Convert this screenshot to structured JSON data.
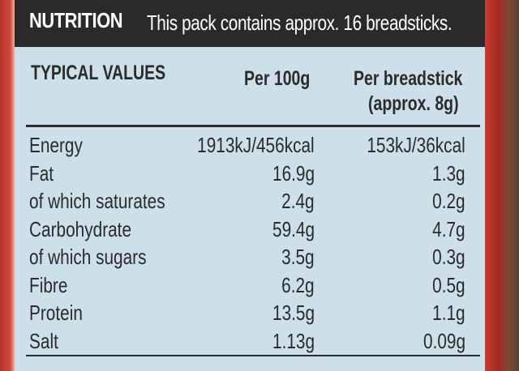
{
  "header": {
    "title": "NUTRITION",
    "subtitle": "This pack contains approx. 16 breadsticks."
  },
  "columns": {
    "nutrient": "TYPICAL VALUES",
    "per100": "Per 100g",
    "perstick_line1": "Per breadstick",
    "perstick_line2": "(approx. 8g)"
  },
  "rows": [
    {
      "nutrient": "Energy",
      "per100": "1913kJ/456kcal",
      "perstick": "153kJ/36kcal"
    },
    {
      "nutrient": "Fat",
      "per100": "16.9g",
      "perstick": "1.3g"
    },
    {
      "nutrient": "of which saturates",
      "per100": "2.4g",
      "perstick": "0.2g"
    },
    {
      "nutrient": "Carbohydrate",
      "per100": "59.4g",
      "perstick": "4.7g"
    },
    {
      "nutrient": "of which sugars",
      "per100": "3.5g",
      "perstick": "0.3g"
    },
    {
      "nutrient": "Fibre",
      "per100": "6.2g",
      "perstick": "0.5g"
    },
    {
      "nutrient": "Protein",
      "per100": "13.5g",
      "perstick": "1.1g"
    },
    {
      "nutrient": "Salt",
      "per100": "1.13g",
      "perstick": "0.09g"
    }
  ],
  "colors": {
    "label_background": "#cde0ea",
    "header_background": "#2a2a2a",
    "packaging_red": "#c83a30",
    "text": "#2b2b2b"
  }
}
